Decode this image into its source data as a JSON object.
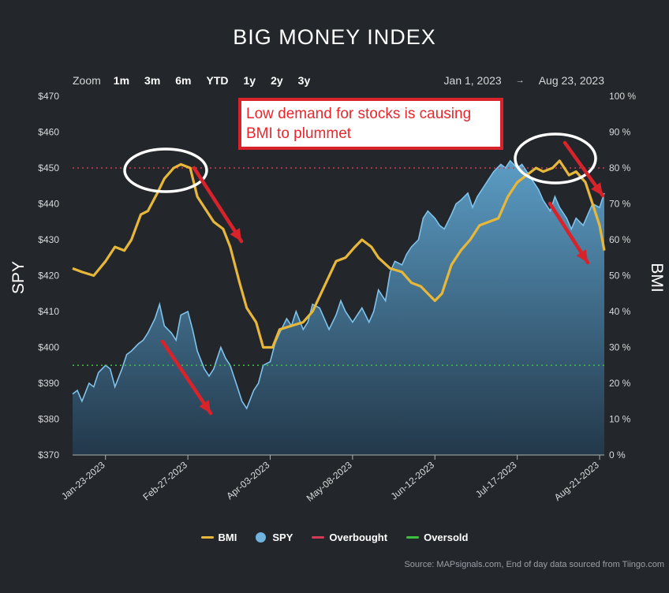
{
  "header": {
    "title": "BIG MONEY INDEX",
    "zoom_label": "Zoom",
    "zoom_options": [
      "1m",
      "3m",
      "6m",
      "YTD",
      "1y",
      "2y",
      "3y"
    ],
    "range_from": "Jan 1, 2023",
    "range_arrow": "→",
    "range_to": "Aug 23, 2023"
  },
  "annotation": {
    "text_line1": "Low demand for stocks is causing",
    "text_line2": "BMI to plummet"
  },
  "legend": [
    {
      "label": "BMI",
      "color": "#e7b73a"
    },
    {
      "label": "SPY",
      "color": "#6fb3de"
    },
    {
      "label": "Overbought",
      "color": "#d33a55"
    },
    {
      "label": "Oversold",
      "color": "#3fbf3f"
    }
  ],
  "source": "Source: MAPsignals.com, End of day data sourced from Tiingo.com",
  "colors": {
    "bmi": "#e7b73a",
    "spy_line": "#7fc2ea",
    "spy_fill_top": "#5b9cc4",
    "spy_fill_bottom": "#23384a",
    "overbought": "#d33a55",
    "oversold": "#3fbf3f",
    "annotation_red": "#d8232a",
    "highlight": "#ffffff"
  },
  "chart_data": {
    "type": "area",
    "x_type": "date",
    "x_range": [
      "2023-01-09",
      "2023-08-23"
    ],
    "x_ticks": [
      "Jan-23-2023",
      "Feb-27-2023",
      "Apr-03-2023",
      "May-08-2023",
      "Jun-12-2023",
      "Jul-17-2023",
      "Aug-21-2023"
    ],
    "left_axis": {
      "title": "SPY",
      "range": [
        370,
        470
      ],
      "tick_labels": [
        "$370",
        "$380",
        "$390",
        "$400",
        "$410",
        "$420",
        "$430",
        "$440",
        "$450",
        "$460",
        "$470"
      ]
    },
    "right_axis": {
      "title": "BMI",
      "range": [
        0,
        100
      ],
      "tick_labels": [
        "0 %",
        "10 %",
        "20 %",
        "30 %",
        "40 %",
        "50 %",
        "60 %",
        "70 %",
        "80 %",
        "90 %",
        "100 %"
      ]
    },
    "overbought_level": 80,
    "oversold_level": 25,
    "series": [
      {
        "name": "SPY",
        "axis": "left",
        "kind": "area",
        "points": [
          [
            "2023-01-09",
            387
          ],
          [
            "2023-01-11",
            388
          ],
          [
            "2023-01-13",
            385
          ],
          [
            "2023-01-16",
            390
          ],
          [
            "2023-01-18",
            389
          ],
          [
            "2023-01-20",
            393
          ],
          [
            "2023-01-23",
            395
          ],
          [
            "2023-01-25",
            394
          ],
          [
            "2023-01-27",
            389
          ],
          [
            "2023-01-30",
            394
          ],
          [
            "2023-02-01",
            398
          ],
          [
            "2023-02-03",
            399
          ],
          [
            "2023-02-06",
            401
          ],
          [
            "2023-02-08",
            402
          ],
          [
            "2023-02-10",
            404
          ],
          [
            "2023-02-13",
            408
          ],
          [
            "2023-02-15",
            412
          ],
          [
            "2023-02-17",
            406
          ],
          [
            "2023-02-20",
            404
          ],
          [
            "2023-02-22",
            402
          ],
          [
            "2023-02-24",
            409
          ],
          [
            "2023-02-27",
            410
          ],
          [
            "2023-03-01",
            405
          ],
          [
            "2023-03-03",
            399
          ],
          [
            "2023-03-06",
            394
          ],
          [
            "2023-03-08",
            392
          ],
          [
            "2023-03-10",
            394
          ],
          [
            "2023-03-13",
            400
          ],
          [
            "2023-03-15",
            397
          ],
          [
            "2023-03-17",
            395
          ],
          [
            "2023-03-20",
            389
          ],
          [
            "2023-03-22",
            385
          ],
          [
            "2023-03-24",
            383
          ],
          [
            "2023-03-27",
            388
          ],
          [
            "2023-03-29",
            390
          ],
          [
            "2023-03-31",
            395
          ],
          [
            "2023-04-03",
            396
          ],
          [
            "2023-04-05",
            401
          ],
          [
            "2023-04-07",
            404
          ],
          [
            "2023-04-10",
            408
          ],
          [
            "2023-04-12",
            406
          ],
          [
            "2023-04-14",
            410
          ],
          [
            "2023-04-17",
            405
          ],
          [
            "2023-04-19",
            407
          ],
          [
            "2023-04-21",
            412
          ],
          [
            "2023-04-24",
            411
          ],
          [
            "2023-04-26",
            408
          ],
          [
            "2023-04-28",
            405
          ],
          [
            "2023-05-01",
            409
          ],
          [
            "2023-05-03",
            413
          ],
          [
            "2023-05-05",
            410
          ],
          [
            "2023-05-08",
            407
          ],
          [
            "2023-05-10",
            409
          ],
          [
            "2023-05-12",
            411
          ],
          [
            "2023-05-15",
            407
          ],
          [
            "2023-05-17",
            410
          ],
          [
            "2023-05-19",
            416
          ],
          [
            "2023-05-22",
            413
          ],
          [
            "2023-05-24",
            421
          ],
          [
            "2023-05-26",
            424
          ],
          [
            "2023-05-29",
            423
          ],
          [
            "2023-05-31",
            426
          ],
          [
            "2023-06-02",
            428
          ],
          [
            "2023-06-05",
            430
          ],
          [
            "2023-06-07",
            436
          ],
          [
            "2023-06-09",
            438
          ],
          [
            "2023-06-12",
            436
          ],
          [
            "2023-06-14",
            434
          ],
          [
            "2023-06-16",
            433
          ],
          [
            "2023-06-19",
            437
          ],
          [
            "2023-06-21",
            440
          ],
          [
            "2023-06-23",
            441
          ],
          [
            "2023-06-26",
            443
          ],
          [
            "2023-06-28",
            439
          ],
          [
            "2023-06-30",
            442
          ],
          [
            "2023-07-03",
            445
          ],
          [
            "2023-07-05",
            447
          ],
          [
            "2023-07-07",
            449
          ],
          [
            "2023-07-10",
            451
          ],
          [
            "2023-07-12",
            450
          ],
          [
            "2023-07-14",
            452
          ],
          [
            "2023-07-17",
            450
          ],
          [
            "2023-07-19",
            451
          ],
          [
            "2023-07-21",
            449
          ],
          [
            "2023-07-24",
            446
          ],
          [
            "2023-07-26",
            444
          ],
          [
            "2023-07-28",
            441
          ],
          [
            "2023-07-31",
            438
          ],
          [
            "2023-08-02",
            442
          ],
          [
            "2023-08-04",
            439
          ],
          [
            "2023-08-07",
            436
          ],
          [
            "2023-08-09",
            433
          ],
          [
            "2023-08-11",
            436
          ],
          [
            "2023-08-14",
            434
          ],
          [
            "2023-08-16",
            437
          ],
          [
            "2023-08-18",
            440
          ],
          [
            "2023-08-21",
            439
          ],
          [
            "2023-08-23",
            443
          ]
        ]
      },
      {
        "name": "BMI",
        "axis": "right",
        "kind": "line",
        "points": [
          [
            "2023-01-09",
            52
          ],
          [
            "2023-01-13",
            51
          ],
          [
            "2023-01-18",
            50
          ],
          [
            "2023-01-23",
            54
          ],
          [
            "2023-01-27",
            58
          ],
          [
            "2023-01-31",
            57
          ],
          [
            "2023-02-03",
            60
          ],
          [
            "2023-02-07",
            67
          ],
          [
            "2023-02-10",
            68
          ],
          [
            "2023-02-14",
            73
          ],
          [
            "2023-02-17",
            77
          ],
          [
            "2023-02-21",
            80
          ],
          [
            "2023-02-24",
            81
          ],
          [
            "2023-02-28",
            80
          ],
          [
            "2023-03-03",
            72
          ],
          [
            "2023-03-07",
            68
          ],
          [
            "2023-03-10",
            65
          ],
          [
            "2023-03-14",
            63
          ],
          [
            "2023-03-17",
            58
          ],
          [
            "2023-03-21",
            48
          ],
          [
            "2023-03-24",
            41
          ],
          [
            "2023-03-28",
            37
          ],
          [
            "2023-03-31",
            30
          ],
          [
            "2023-04-04",
            30
          ],
          [
            "2023-04-07",
            35
          ],
          [
            "2023-04-12",
            36
          ],
          [
            "2023-04-17",
            37
          ],
          [
            "2023-04-21",
            40
          ],
          [
            "2023-04-26",
            47
          ],
          [
            "2023-05-01",
            54
          ],
          [
            "2023-05-05",
            55
          ],
          [
            "2023-05-09",
            58
          ],
          [
            "2023-05-12",
            60
          ],
          [
            "2023-05-16",
            58
          ],
          [
            "2023-05-19",
            55
          ],
          [
            "2023-05-24",
            52
          ],
          [
            "2023-05-29",
            51
          ],
          [
            "2023-06-02",
            48
          ],
          [
            "2023-06-06",
            47
          ],
          [
            "2023-06-09",
            45
          ],
          [
            "2023-06-12",
            43
          ],
          [
            "2023-06-15",
            45
          ],
          [
            "2023-06-19",
            53
          ],
          [
            "2023-06-23",
            57
          ],
          [
            "2023-06-27",
            60
          ],
          [
            "2023-07-01",
            64
          ],
          [
            "2023-07-05",
            65
          ],
          [
            "2023-07-09",
            66
          ],
          [
            "2023-07-13",
            72
          ],
          [
            "2023-07-17",
            76
          ],
          [
            "2023-07-21",
            78
          ],
          [
            "2023-07-25",
            80
          ],
          [
            "2023-07-28",
            79
          ],
          [
            "2023-08-01",
            80
          ],
          [
            "2023-08-04",
            82
          ],
          [
            "2023-08-08",
            78
          ],
          [
            "2023-08-11",
            79
          ],
          [
            "2023-08-15",
            76
          ],
          [
            "2023-08-18",
            70
          ],
          [
            "2023-08-21",
            64
          ],
          [
            "2023-08-23",
            57
          ]
        ]
      }
    ]
  }
}
